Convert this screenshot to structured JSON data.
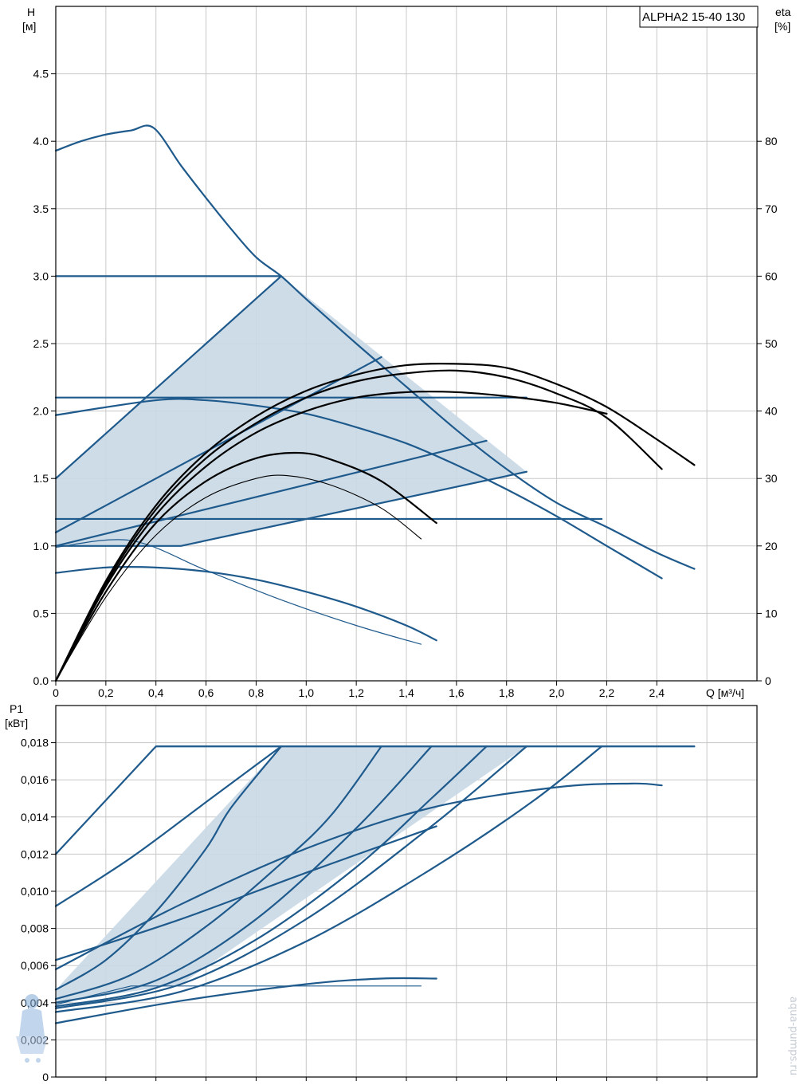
{
  "title": "ALPHA2 15-40 130",
  "watermark": {
    "text": "aqua-pumps.ru",
    "color": "#c6ccd3"
  },
  "colors": {
    "pump_curve": "#1f5a8c",
    "efficiency_curve": "#000000",
    "operating_area": "#c9d8e6",
    "grid": "#c8c8c8"
  },
  "chart_data": [
    {
      "type": "line",
      "name": "Q-H",
      "ylabel_left": [
        "H",
        "[м]"
      ],
      "ylabel_right": [
        "eta",
        "[%]"
      ],
      "xlabel": "Q [м³/ч]",
      "xlim": [
        0,
        2.8
      ],
      "ylim": [
        0,
        5
      ],
      "ylim_right": [
        0,
        100
      ],
      "x_ticks": [
        "0",
        "0,2",
        "0,4",
        "0,6",
        "0,8",
        "1,0",
        "1,2",
        "1,4",
        "1,6",
        "1,8",
        "2,0",
        "2,2",
        "2,4"
      ],
      "y_ticks": [
        "0.0",
        "0.5",
        "1.0",
        "1.5",
        "2.0",
        "2.5",
        "3.0",
        "3.5",
        "4.0",
        "4.5"
      ],
      "y_ticks_right": [
        "0",
        "10",
        "20",
        "30",
        "40",
        "50",
        "60",
        "70",
        "80"
      ],
      "grid": true,
      "operating_area": {
        "x": [
          0,
          0.9,
          1.88,
          0.5,
          0
        ],
        "y": [
          1.5,
          3.0,
          1.55,
          1.0,
          1.0
        ]
      },
      "series": [
        {
          "style": "blue",
          "x": [
            0,
            0.1,
            0.2,
            0.3,
            0.39,
            0.5,
            0.6,
            0.7,
            0.8,
            0.9,
            1.0,
            1.2,
            1.4,
            1.6,
            1.8,
            2.0,
            2.2,
            2.4,
            2.55
          ],
          "y": [
            3.93,
            4.0,
            4.05,
            4.08,
            4.1,
            3.82,
            3.58,
            3.35,
            3.14,
            3.0,
            2.83,
            2.5,
            2.18,
            1.86,
            1.57,
            1.32,
            1.14,
            0.95,
            0.83
          ]
        },
        {
          "style": "blue",
          "x": [
            0,
            0.4,
            0.6,
            0.8,
            1.0,
            1.2,
            1.4,
            1.6,
            1.8,
            2.0,
            2.2,
            2.42
          ],
          "y": [
            1.97,
            2.08,
            2.08,
            2.04,
            1.98,
            1.88,
            1.76,
            1.6,
            1.42,
            1.22,
            1.0,
            0.76
          ]
        },
        {
          "style": "blue",
          "x": [
            0,
            0.2,
            0.4,
            0.6,
            0.8,
            1.0,
            1.2,
            1.4,
            1.52
          ],
          "y": [
            0.8,
            0.84,
            0.84,
            0.81,
            0.75,
            0.66,
            0.55,
            0.41,
            0.3
          ]
        },
        {
          "style": "blue-thin",
          "x": [
            0,
            0.3,
            0.6,
            0.9,
            1.2,
            1.46
          ],
          "y": [
            0.99,
            1.04,
            0.82,
            0.6,
            0.41,
            0.27
          ]
        },
        {
          "style": "blue",
          "x": [
            0,
            0.9
          ],
          "y": [
            3.0,
            3.0
          ]
        },
        {
          "style": "blue",
          "x": [
            0,
            1.88
          ],
          "y": [
            2.1,
            2.1
          ]
        },
        {
          "style": "blue",
          "x": [
            0,
            2.18
          ],
          "y": [
            1.2,
            1.2
          ]
        },
        {
          "style": "blue",
          "x": [
            0,
            0.9
          ],
          "y": [
            1.5,
            3.0
          ]
        },
        {
          "style": "blue",
          "x": [
            0,
            1.3
          ],
          "y": [
            1.1,
            2.4
          ]
        },
        {
          "style": "blue",
          "x": [
            0,
            1.72
          ],
          "y": [
            1.0,
            1.78
          ]
        },
        {
          "style": "blue",
          "x": [
            0,
            0.5,
            1.88
          ],
          "y": [
            1.0,
            1.0,
            1.55
          ]
        },
        {
          "style": "black",
          "x": [
            0,
            0.2,
            0.4,
            0.6,
            0.8,
            1.0,
            1.2,
            1.4,
            1.6,
            1.8,
            2.0,
            2.2,
            2.4,
            2.55
          ],
          "y": [
            0.0,
            0.74,
            1.3,
            1.69,
            1.96,
            2.15,
            2.27,
            2.34,
            2.35,
            2.32,
            2.2,
            2.03,
            1.79,
            1.6
          ]
        },
        {
          "style": "black",
          "x": [
            0,
            0.2,
            0.4,
            0.6,
            0.8,
            1.0,
            1.2,
            1.4,
            1.6,
            1.8,
            2.0,
            2.2,
            2.42
          ],
          "y": [
            0.0,
            0.72,
            1.27,
            1.65,
            1.91,
            2.1,
            2.22,
            2.28,
            2.3,
            2.25,
            2.13,
            1.95,
            1.57
          ]
        },
        {
          "style": "black",
          "x": [
            0,
            0.2,
            0.4,
            0.6,
            0.8,
            1.0,
            1.2,
            1.4,
            1.6,
            1.8,
            2.0,
            2.2
          ],
          "y": [
            0.0,
            0.7,
            1.23,
            1.59,
            1.84,
            2.0,
            2.1,
            2.14,
            2.14,
            2.11,
            2.06,
            1.98
          ]
        },
        {
          "style": "black",
          "x": [
            0,
            0.2,
            0.4,
            0.6,
            0.8,
            0.97,
            1.1,
            1.3,
            1.52
          ],
          "y": [
            0.0,
            0.66,
            1.17,
            1.48,
            1.65,
            1.69,
            1.64,
            1.48,
            1.17
          ]
        },
        {
          "style": "black-thin",
          "x": [
            0,
            0.2,
            0.4,
            0.6,
            0.8,
            0.93,
            1.1,
            1.3,
            1.46
          ],
          "y": [
            0.0,
            0.62,
            1.08,
            1.36,
            1.5,
            1.52,
            1.45,
            1.28,
            1.05
          ]
        }
      ]
    },
    {
      "type": "line",
      "name": "Q-P1",
      "ylabel_left": [
        "P1",
        "[кВт]"
      ],
      "xlim": [
        0,
        2.8
      ],
      "ylim": [
        0,
        0.02
      ],
      "y_ticks": [
        "0",
        "0,002",
        "0,004",
        "0,006",
        "0,008",
        "0,010",
        "0,012",
        "0,014",
        "0,016",
        "0,018"
      ],
      "grid": true,
      "operating_area": {
        "x": [
          0,
          0.9,
          1.88,
          0.5,
          0
        ],
        "y": [
          0.0047,
          0.0178,
          0.0178,
          0.005,
          0.004
        ]
      },
      "series": [
        {
          "style": "blue",
          "x": [
            0,
            0.4,
            2.55
          ],
          "y": [
            0.012,
            0.0178,
            0.0178
          ]
        },
        {
          "style": "blue",
          "x": [
            0,
            0.3,
            0.6,
            0.9
          ],
          "y": [
            0.0092,
            0.0118,
            0.0148,
            0.0178
          ]
        },
        {
          "style": "blue",
          "x": [
            0,
            0.2,
            0.4,
            0.6,
            0.7,
            0.9
          ],
          "y": [
            0.0047,
            0.0063,
            0.0089,
            0.0123,
            0.0145,
            0.0178
          ]
        },
        {
          "style": "blue",
          "x": [
            0,
            0.3,
            0.6,
            0.9,
            1.1,
            1.3
          ],
          "y": [
            0.0042,
            0.0055,
            0.0081,
            0.0115,
            0.0141,
            0.0178
          ]
        },
        {
          "style": "blue",
          "x": [
            0,
            0.4,
            0.8,
            1.2,
            1.5
          ],
          "y": [
            0.004,
            0.0052,
            0.0085,
            0.0134,
            0.0178
          ]
        },
        {
          "style": "blue",
          "x": [
            0,
            0.4,
            0.8,
            1.2,
            1.5,
            1.72
          ],
          "y": [
            0.0038,
            0.0048,
            0.0074,
            0.0113,
            0.015,
            0.0178
          ]
        },
        {
          "style": "blue",
          "x": [
            0,
            0.5,
            1.0,
            1.5,
            1.88
          ],
          "y": [
            0.0037,
            0.005,
            0.0085,
            0.0135,
            0.0178
          ]
        },
        {
          "style": "blue",
          "x": [
            0,
            0.5,
            1.0,
            1.5,
            1.9,
            2.18
          ],
          "y": [
            0.0035,
            0.0046,
            0.0073,
            0.0112,
            0.0148,
            0.0178
          ]
        },
        {
          "style": "blue",
          "x": [
            0,
            0.5,
            1.0,
            1.5,
            2.0,
            2.3,
            2.42
          ],
          "y": [
            0.0058,
            0.0093,
            0.0123,
            0.0145,
            0.0156,
            0.0158,
            0.0157
          ]
        },
        {
          "style": "blue",
          "x": [
            0,
            0.5,
            1.0,
            1.52
          ],
          "y": [
            0.0063,
            0.0085,
            0.011,
            0.0135
          ]
        },
        {
          "style": "blue",
          "x": [
            0,
            0.5,
            1.0,
            1.3,
            1.52
          ],
          "y": [
            0.0029,
            0.0041,
            0.005,
            0.0053,
            0.0053
          ]
        },
        {
          "style": "blue-thin",
          "x": [
            0,
            0.3,
            1.46
          ],
          "y": [
            0.0039,
            0.0049,
            0.0049
          ]
        }
      ]
    }
  ]
}
